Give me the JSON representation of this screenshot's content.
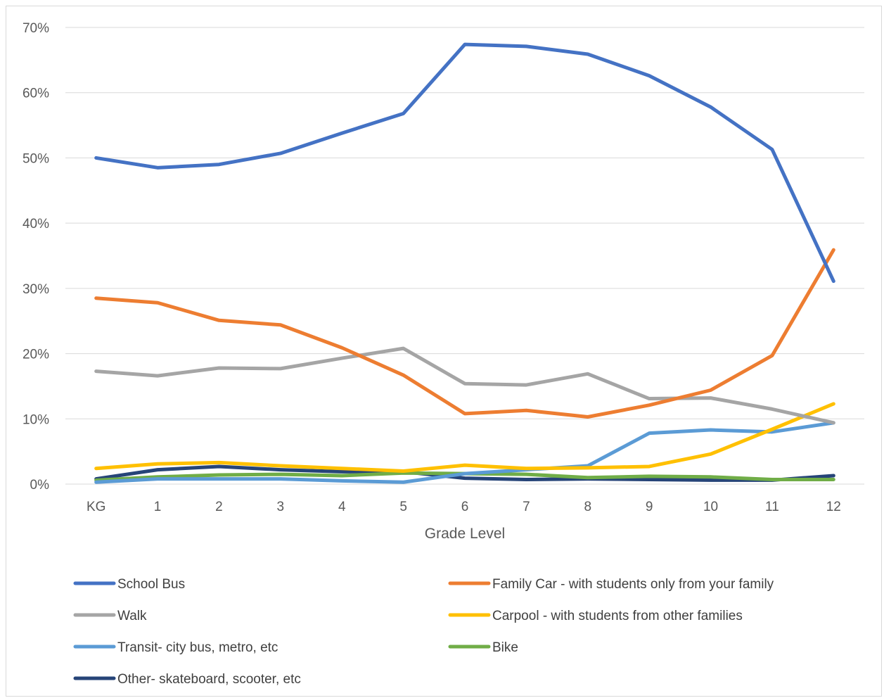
{
  "chart_data": {
    "type": "line",
    "title": "",
    "xlabel": "Grade Level",
    "ylabel": "",
    "categories": [
      "KG",
      "1",
      "2",
      "3",
      "4",
      "5",
      "6",
      "7",
      "8",
      "9",
      "10",
      "11",
      "12"
    ],
    "ylim": [
      0,
      70
    ],
    "yticks": [
      0,
      10,
      20,
      30,
      40,
      50,
      60,
      70
    ],
    "ytick_labels": [
      "0%",
      "10%",
      "20%",
      "30%",
      "40%",
      "50%",
      "60%",
      "70%"
    ],
    "grid": true,
    "legend_position": "bottom",
    "series": [
      {
        "name": "School Bus",
        "color": "#4472C4",
        "values": [
          50.0,
          48.5,
          49.0,
          50.7,
          53.8,
          56.8,
          67.4,
          67.1,
          65.9,
          62.6,
          57.8,
          51.3,
          31.1
        ]
      },
      {
        "name": "Family Car - with students only from your family",
        "color": "#ED7D31",
        "values": [
          28.5,
          27.8,
          25.1,
          24.4,
          20.9,
          16.7,
          10.8,
          11.3,
          10.3,
          12.1,
          14.4,
          19.7,
          35.9
        ]
      },
      {
        "name": "Walk",
        "color": "#A5A5A5",
        "values": [
          17.3,
          16.6,
          17.8,
          17.7,
          19.3,
          20.8,
          15.4,
          15.2,
          16.9,
          13.1,
          13.2,
          11.5,
          9.4
        ]
      },
      {
        "name": "Carpool - with students from other families",
        "color": "#FFC000",
        "values": [
          2.4,
          3.1,
          3.3,
          2.8,
          2.4,
          2.0,
          2.9,
          2.4,
          2.5,
          2.7,
          4.6,
          8.4,
          12.3
        ]
      },
      {
        "name": "Transit- city bus, metro, etc",
        "color": "#5B9BD5",
        "values": [
          0.3,
          0.8,
          0.8,
          0.8,
          0.5,
          0.3,
          1.6,
          2.2,
          2.8,
          7.8,
          8.3,
          8.0,
          9.4
        ]
      },
      {
        "name": "Bike",
        "color": "#70AD47",
        "values": [
          0.6,
          1.1,
          1.4,
          1.5,
          1.3,
          1.7,
          1.6,
          1.5,
          1.0,
          1.2,
          1.1,
          0.7,
          0.7
        ]
      },
      {
        "name": "Other- skateboard, scooter, etc",
        "color": "#264478",
        "values": [
          0.8,
          2.2,
          2.7,
          2.2,
          1.9,
          1.9,
          0.9,
          0.7,
          0.8,
          0.7,
          0.6,
          0.6,
          1.3
        ]
      }
    ]
  }
}
